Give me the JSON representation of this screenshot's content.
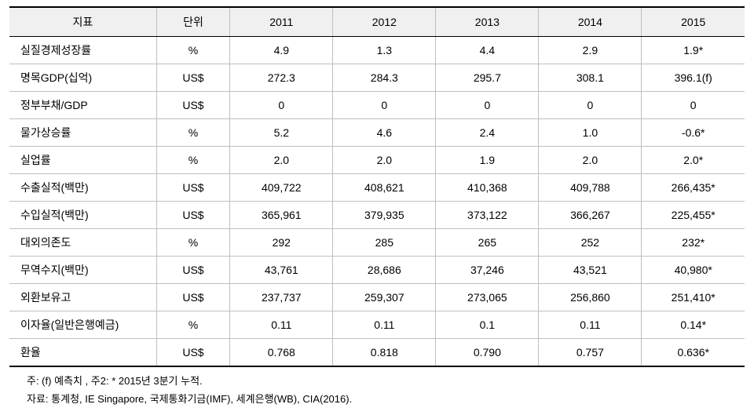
{
  "table": {
    "columns": [
      "지표",
      "단위",
      "2011",
      "2012",
      "2013",
      "2014",
      "2015"
    ],
    "rows": [
      [
        "실질경제성장률",
        "%",
        "4.9",
        "1.3",
        "4.4",
        "2.9",
        "1.9*"
      ],
      [
        "명목GDP(십억)",
        "US$",
        "272.3",
        "284.3",
        "295.7",
        "308.1",
        "396.1(f)"
      ],
      [
        "정부부채/GDP",
        "US$",
        "0",
        "0",
        "0",
        "0",
        "0"
      ],
      [
        "물가상승률",
        "%",
        "5.2",
        "4.6",
        "2.4",
        "1.0",
        "-0.6*"
      ],
      [
        "실업률",
        "%",
        "2.0",
        "2.0",
        "1.9",
        "2.0",
        "2.0*"
      ],
      [
        "수출실적(백만)",
        "US$",
        "409,722",
        "408,621",
        "410,368",
        "409,788",
        "266,435*"
      ],
      [
        "수입실적(백만)",
        "US$",
        "365,961",
        "379,935",
        "373,122",
        "366,267",
        "225,455*"
      ],
      [
        "대외의존도",
        "%",
        "292",
        "285",
        "265",
        "252",
        "232*"
      ],
      [
        "무역수지(백만)",
        "US$",
        "43,761",
        "28,686",
        "37,246",
        "43,521",
        "40,980*"
      ],
      [
        "외환보유고",
        "US$",
        "237,737",
        "259,307",
        "273,065",
        "256,860",
        "251,410*"
      ],
      [
        "이자율(일반은행예금)",
        "%",
        "0.11",
        "0.11",
        "0.1",
        "0.11",
        "0.14*"
      ],
      [
        "환율",
        "US$",
        "0.768",
        "0.818",
        "0.790",
        "0.757",
        "0.636*"
      ]
    ],
    "header_bg": "#f0f0f0",
    "border_top_color": "#000000",
    "grid_color": "#bfbfbf",
    "font_size": 14
  },
  "footnotes": {
    "line1": "주: (f) 예측치 ,  주2: * 2015년 3분기 누적.",
    "line2": "자료: 통계청,  IE  Singapore,  국제통화기금(IMF),  세계은행(WB),  CIA(2016)."
  }
}
